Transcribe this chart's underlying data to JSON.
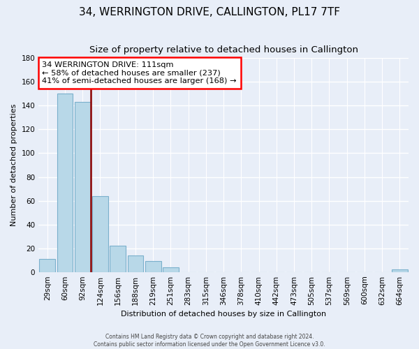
{
  "title": "34, WERRINGTON DRIVE, CALLINGTON, PL17 7TF",
  "subtitle": "Size of property relative to detached houses in Callington",
  "xlabel": "Distribution of detached houses by size in Callington",
  "ylabel": "Number of detached properties",
  "bar_values": [
    11,
    150,
    143,
    64,
    22,
    14,
    9,
    4,
    0,
    0,
    0,
    0,
    0,
    0,
    0,
    0,
    0,
    0,
    0,
    0,
    2
  ],
  "bin_labels": [
    "29sqm",
    "60sqm",
    "92sqm",
    "124sqm",
    "156sqm",
    "188sqm",
    "219sqm",
    "251sqm",
    "283sqm",
    "315sqm",
    "346sqm",
    "378sqm",
    "410sqm",
    "442sqm",
    "473sqm",
    "505sqm",
    "537sqm",
    "569sqm",
    "600sqm",
    "632sqm",
    "664sqm"
  ],
  "bar_color": "#b8d8e8",
  "bar_edge_color": "#7ab0cc",
  "ylim": [
    0,
    180
  ],
  "yticks": [
    0,
    20,
    40,
    60,
    80,
    100,
    120,
    140,
    160,
    180
  ],
  "annotation_title": "34 WERRINGTON DRIVE: 111sqm",
  "annotation_line1": "← 58% of detached houses are smaller (237)",
  "annotation_line2": "41% of semi-detached houses are larger (168) →",
  "footer_line1": "Contains HM Land Registry data © Crown copyright and database right 2024.",
  "footer_line2": "Contains public sector information licensed under the Open Government Licence v3.0.",
  "background_color": "#e8eef8",
  "grid_color": "#ffffff",
  "title_fontsize": 11,
  "axis_label_fontsize": 8,
  "tick_fontsize": 7.5
}
